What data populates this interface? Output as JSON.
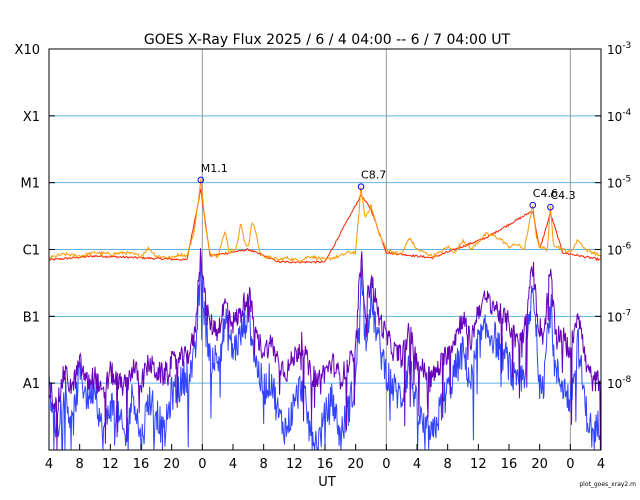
{
  "chart_data": {
    "type": "line",
    "title": "GOES X-Ray Flux   2025 /  6 /  4   04:00 --  6 /  7   04:00   UT",
    "xlabel": "UT",
    "credit": "plot_goes_xray2.m",
    "x_ticks_hours": [
      "4",
      "8",
      "12",
      "16",
      "20",
      "0",
      "4",
      "8",
      "12",
      "16",
      "20",
      "0",
      "4",
      "8",
      "12",
      "16",
      "20",
      "0",
      "4"
    ],
    "x_range_hours_since_start": [
      0,
      72
    ],
    "day_boundaries_hours_since_start": [
      20,
      44,
      68
    ],
    "y_scale": "log",
    "y_range_watts_per_m2": [
      1e-09,
      0.001
    ],
    "left_axis_labels": [
      "X10",
      "X1",
      "M1",
      "C1",
      "B1",
      "A1"
    ],
    "right_axis_labels": [
      {
        "base": "10",
        "exp": "-3"
      },
      {
        "base": "10",
        "exp": "-4"
      },
      {
        "base": "10",
        "exp": "-5"
      },
      {
        "base": "10",
        "exp": "-6"
      },
      {
        "base": "10",
        "exp": "-7"
      },
      {
        "base": "10",
        "exp": "-8"
      }
    ],
    "grid_y": true,
    "colors": {
      "long_primary": "#ff2200",
      "long_secondary": "#ff9900",
      "short_primary": "#3344ff",
      "short_secondary": "#6600bb",
      "grid": "#5fb2e6",
      "day_line": "#999999",
      "flare_marker": "#0000ff"
    },
    "flares": [
      {
        "label": "M1.1",
        "hours": 19.8,
        "flux": 1.1e-05
      },
      {
        "label": "C8.7",
        "hours": 40.7,
        "flux": 8.7e-06
      },
      {
        "label": "C4.6",
        "hours": 63.1,
        "flux": 4.6e-06
      },
      {
        "label": "C4.3",
        "hours": 65.4,
        "flux": 4.3e-06
      }
    ],
    "series": [
      {
        "points": [
          [
            0,
            7.5e-07
          ],
          [
            2,
            8.5e-07
          ],
          [
            4,
            8e-07
          ],
          [
            6,
            9e-07
          ],
          [
            8,
            8.5e-07
          ],
          [
            10,
            9e-07
          ],
          [
            12,
            8e-07
          ],
          [
            13,
            1.05e-06
          ],
          [
            14,
            8e-07
          ],
          [
            16,
            7.5e-07
          ],
          [
            17,
            8.5e-07
          ],
          [
            18,
            8e-07
          ],
          [
            19,
            2e-06
          ],
          [
            19.8,
            1.1e-05
          ],
          [
            20.4,
            2.2e-06
          ],
          [
            21,
            9e-07
          ],
          [
            22,
            8e-07
          ],
          [
            23,
            1.9e-06
          ],
          [
            23.5,
            9e-07
          ],
          [
            24.5,
            1.1e-06
          ],
          [
            25,
            2.5e-06
          ],
          [
            25.5,
            1.3e-06
          ],
          [
            26,
            1.1e-06
          ],
          [
            26.5,
            2.6e-06
          ],
          [
            27,
            1.8e-06
          ],
          [
            27.5,
            9e-07
          ],
          [
            28,
            8e-07
          ],
          [
            29,
            7.5e-07
          ],
          [
            30,
            7e-07
          ],
          [
            31,
            7.5e-07
          ],
          [
            32,
            7e-07
          ],
          [
            33,
            7e-07
          ],
          [
            34,
            8e-07
          ],
          [
            35,
            7.5e-07
          ],
          [
            36,
            7e-07
          ],
          [
            37,
            7.5e-07
          ],
          [
            38,
            8e-07
          ],
          [
            39,
            9e-07
          ],
          [
            40,
            9e-07
          ],
          [
            40.7,
            8.7e-06
          ],
          [
            41.2,
            3e-06
          ],
          [
            42,
            4.5e-06
          ],
          [
            43,
            1.8e-06
          ],
          [
            44,
            1e-06
          ],
          [
            45,
            9e-07
          ],
          [
            46,
            8.5e-07
          ],
          [
            47,
            1.5e-06
          ],
          [
            48,
            1e-06
          ],
          [
            49,
            9e-07
          ],
          [
            50,
            8e-07
          ],
          [
            51,
            9e-07
          ],
          [
            52,
            1.1e-06
          ],
          [
            53,
            9e-07
          ],
          [
            54,
            1.4e-06
          ],
          [
            55,
            1e-06
          ],
          [
            56,
            1.3e-06
          ],
          [
            57,
            1.7e-06
          ],
          [
            58,
            1.6e-06
          ],
          [
            59,
            1.4e-06
          ],
          [
            60,
            1.1e-06
          ],
          [
            61,
            1.2e-06
          ],
          [
            62,
            1e-06
          ],
          [
            63.1,
            4.6e-06
          ],
          [
            63.6,
            1.5e-06
          ],
          [
            64,
            1.1e-06
          ],
          [
            65,
            1e-06
          ],
          [
            65.4,
            4.3e-06
          ],
          [
            65.8,
            1.2e-06
          ],
          [
            67,
            1e-06
          ],
          [
            68,
            9e-07
          ],
          [
            69,
            1.4e-06
          ],
          [
            70,
            1e-06
          ],
          [
            71,
            9e-07
          ],
          [
            72,
            8e-07
          ]
        ]
      },
      {
        "points": [
          [
            0,
            7e-07
          ],
          [
            6,
            8e-07
          ],
          [
            12,
            7.5e-07
          ],
          [
            18,
            7e-07
          ],
          [
            19.8,
            8e-06
          ],
          [
            21,
            8e-07
          ],
          [
            26,
            1e-06
          ],
          [
            30,
            6.5e-07
          ],
          [
            36,
            6.5e-07
          ],
          [
            40.7,
            6.5e-06
          ],
          [
            42,
            4e-06
          ],
          [
            44,
            9e-07
          ],
          [
            50,
            7.5e-07
          ],
          [
            57,
            1.5e-06
          ],
          [
            63.1,
            3.8e-06
          ],
          [
            64,
            1e-06
          ],
          [
            65.4,
            3.5e-06
          ],
          [
            67,
            9e-07
          ],
          [
            72,
            7e-07
          ]
        ]
      },
      {
        "points": [
          [
            0,
            1e-08
          ],
          [
            1,
            4e-09
          ],
          [
            2,
            1.5e-08
          ],
          [
            3,
            8e-09
          ],
          [
            4,
            2e-08
          ],
          [
            5,
            1e-08
          ],
          [
            6,
            1.3e-08
          ],
          [
            7,
            6e-09
          ],
          [
            8,
            1.5e-08
          ],
          [
            9,
            1e-08
          ],
          [
            10,
            9e-09
          ],
          [
            11,
            1.8e-08
          ],
          [
            12,
            1e-08
          ],
          [
            13,
            2e-08
          ],
          [
            14,
            1.5e-08
          ],
          [
            15,
            1.3e-08
          ],
          [
            16,
            2e-08
          ],
          [
            17,
            2.2e-08
          ],
          [
            18,
            2.5e-08
          ],
          [
            19,
            5e-08
          ],
          [
            19.8,
            1e-06
          ],
          [
            20.5,
            1.2e-07
          ],
          [
            21,
            8e-08
          ],
          [
            22,
            6e-08
          ],
          [
            23,
            1.6e-07
          ],
          [
            24,
            8e-08
          ],
          [
            25,
            1.1e-07
          ],
          [
            26,
            2.5e-07
          ],
          [
            27,
            5e-08
          ],
          [
            28,
            3e-08
          ],
          [
            29,
            4e-08
          ],
          [
            30,
            2e-08
          ],
          [
            31,
            1.5e-08
          ],
          [
            32,
            2.5e-08
          ],
          [
            33,
            4e-08
          ],
          [
            34,
            1.5e-08
          ],
          [
            35,
            1.1e-08
          ],
          [
            36,
            1.5e-08
          ],
          [
            37,
            2e-08
          ],
          [
            38,
            1.2e-08
          ],
          [
            39,
            1.8e-08
          ],
          [
            40,
            3e-08
          ],
          [
            40.7,
            9e-07
          ],
          [
            41.3,
            1.2e-07
          ],
          [
            42,
            4e-07
          ],
          [
            43,
            1e-07
          ],
          [
            44,
            5e-08
          ],
          [
            45,
            3e-08
          ],
          [
            46,
            2.5e-08
          ],
          [
            47,
            6e-08
          ],
          [
            48,
            2e-08
          ],
          [
            49,
            1.5e-08
          ],
          [
            50,
            1.2e-08
          ],
          [
            51,
            1.8e-08
          ],
          [
            52,
            3e-08
          ],
          [
            53,
            5e-08
          ],
          [
            54,
            1e-07
          ],
          [
            55,
            4e-08
          ],
          [
            56,
            1.3e-07
          ],
          [
            57,
            1.8e-07
          ],
          [
            58,
            1.5e-07
          ],
          [
            59,
            1e-07
          ],
          [
            60,
            8e-08
          ],
          [
            61,
            4e-08
          ],
          [
            62,
            6e-08
          ],
          [
            63.1,
            6e-07
          ],
          [
            63.8,
            8e-08
          ],
          [
            64.5,
            5e-08
          ],
          [
            65.4,
            5e-07
          ],
          [
            66,
            6e-08
          ],
          [
            67,
            5e-08
          ],
          [
            68,
            3e-08
          ],
          [
            69,
            1.3e-07
          ],
          [
            70,
            2e-08
          ],
          [
            71,
            1e-08
          ],
          [
            72,
            1.2e-08
          ]
        ]
      },
      {
        "points": [
          [
            0,
            8e-09
          ],
          [
            1,
            2e-09
          ],
          [
            2,
            1e-08
          ],
          [
            3,
            2e-09
          ],
          [
            4,
            1.5e-08
          ],
          [
            5,
            6e-09
          ],
          [
            6,
            1e-08
          ],
          [
            7,
            1.5e-09
          ],
          [
            8,
            5e-09
          ],
          [
            9,
            3e-09
          ],
          [
            10,
            1.5e-09
          ],
          [
            11,
            8e-09
          ],
          [
            12,
            1.2e-09
          ],
          [
            13,
            6e-09
          ],
          [
            14,
            4e-09
          ],
          [
            15,
            1.5e-09
          ],
          [
            16,
            7e-09
          ],
          [
            17,
            9e-09
          ],
          [
            18,
            1.4e-08
          ],
          [
            19,
            2e-08
          ],
          [
            19.8,
            5e-07
          ],
          [
            20.5,
            6e-08
          ],
          [
            21,
            3e-08
          ],
          [
            22,
            2e-08
          ],
          [
            23,
            8e-08
          ],
          [
            24,
            3e-08
          ],
          [
            25,
            5e-08
          ],
          [
            26,
            1.2e-07
          ],
          [
            27,
            2e-08
          ],
          [
            28,
            8e-09
          ],
          [
            29,
            1.2e-08
          ],
          [
            30,
            3e-09
          ],
          [
            31,
            2e-09
          ],
          [
            32,
            5e-09
          ],
          [
            33,
            1e-08
          ],
          [
            34,
            2e-09
          ],
          [
            35,
            1.2e-09
          ],
          [
            36,
            3e-09
          ],
          [
            37,
            6e-09
          ],
          [
            38,
            1.5e-09
          ],
          [
            39,
            4e-09
          ],
          [
            40,
            1e-08
          ],
          [
            40.7,
            4.5e-07
          ],
          [
            41.3,
            5e-08
          ],
          [
            42,
            1.8e-07
          ],
          [
            43,
            4e-08
          ],
          [
            44,
            1.5e-08
          ],
          [
            45,
            8e-09
          ],
          [
            46,
            6e-09
          ],
          [
            47,
            2e-08
          ],
          [
            48,
            4e-09
          ],
          [
            49,
            2e-09
          ],
          [
            50,
            1.5e-09
          ],
          [
            51,
            4e-09
          ],
          [
            52,
            8e-09
          ],
          [
            53,
            1.5e-08
          ],
          [
            54,
            3e-08
          ],
          [
            55,
            1e-08
          ],
          [
            56,
            4e-08
          ],
          [
            57,
            6e-08
          ],
          [
            58,
            5e-08
          ],
          [
            59,
            3e-08
          ],
          [
            60,
            2e-08
          ],
          [
            61,
            8e-09
          ],
          [
            62,
            1.5e-08
          ],
          [
            63.1,
            2.5e-07
          ],
          [
            63.8,
            2e-08
          ],
          [
            64.5,
            1e-08
          ],
          [
            65.4,
            2e-07
          ],
          [
            66,
            1.5e-08
          ],
          [
            67,
            1e-08
          ],
          [
            68,
            5e-09
          ],
          [
            69,
            4e-08
          ],
          [
            70,
            4e-09
          ],
          [
            71,
            1.5e-09
          ],
          [
            72,
            3e-09
          ]
        ]
      }
    ]
  }
}
